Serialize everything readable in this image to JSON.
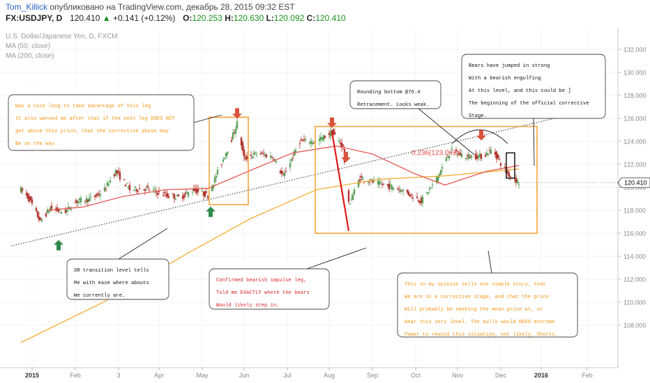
{
  "header": {
    "username": "Tom_Killick",
    "published_text": "опубликовано на TradingView.com, декабрь 28, 2015 09:32 EST",
    "symbol": "FX:USDJPY, D",
    "last": "120.410",
    "up_arrow": "▲",
    "change": "+0.141 (+0.12%)",
    "o_label": "O:",
    "o_value": "120.253",
    "h_label": "H:",
    "h_value": "120.630",
    "l_label": "L:",
    "l_value": "120.092",
    "c_label": "C:",
    "c_value": "120.410"
  },
  "legend": {
    "title": "U.S. Dollar/Japanese Yen, D, FXCM",
    "ma50": "MA (50, close)",
    "ma200": "MA (200, close)"
  },
  "chart_data": {
    "type": "candlestick",
    "instrument": "U.S. Dollar/Japanese Yen, D, FXCM",
    "ylim": [
      107,
      133
    ],
    "y_ticks": [
      "108.000",
      "110.000",
      "112.000",
      "114.000",
      "116.000",
      "118.000",
      "120.000",
      "122.000",
      "124.000",
      "126.000",
      "128.000",
      "130.000",
      "132.000"
    ],
    "x_ticks": [
      "2015",
      "Feb",
      "3",
      "Apr",
      "May",
      "Jun",
      "Jul",
      "Aug",
      "Sep",
      "Oct",
      "Nov",
      "Dec",
      "2016",
      "Feb"
    ],
    "last_price_label": "120.410",
    "fib_label": "0.236(123.062)",
    "price_path": [
      {
        "d": "2015-01-01",
        "p": 119.8
      },
      {
        "d": "2015-01-07",
        "p": 119.0
      },
      {
        "d": "2015-01-15",
        "p": 117.0
      },
      {
        "d": "2015-01-22",
        "p": 118.2
      },
      {
        "d": "2015-02-01",
        "p": 117.8
      },
      {
        "d": "2015-02-10",
        "p": 118.8
      },
      {
        "d": "2015-02-20",
        "p": 119.0
      },
      {
        "d": "2015-03-01",
        "p": 119.6
      },
      {
        "d": "2015-03-10",
        "p": 121.4
      },
      {
        "d": "2015-03-20",
        "p": 119.8
      },
      {
        "d": "2015-04-01",
        "p": 119.9
      },
      {
        "d": "2015-04-15",
        "p": 119.3
      },
      {
        "d": "2015-04-25",
        "p": 119.1
      },
      {
        "d": "2015-05-05",
        "p": 119.8
      },
      {
        "d": "2015-05-15",
        "p": 119.3
      },
      {
        "d": "2015-05-22",
        "p": 121.3
      },
      {
        "d": "2015-06-01",
        "p": 124.2
      },
      {
        "d": "2015-06-05",
        "p": 125.6
      },
      {
        "d": "2015-06-10",
        "p": 122.5
      },
      {
        "d": "2015-06-20",
        "p": 123.0
      },
      {
        "d": "2015-07-01",
        "p": 122.6
      },
      {
        "d": "2015-07-08",
        "p": 120.9
      },
      {
        "d": "2015-07-20",
        "p": 124.0
      },
      {
        "d": "2015-08-01",
        "p": 124.0
      },
      {
        "d": "2015-08-12",
        "p": 124.8
      },
      {
        "d": "2015-08-20",
        "p": 123.5
      },
      {
        "d": "2015-08-24",
        "p": 118.5
      },
      {
        "d": "2015-09-01",
        "p": 120.8
      },
      {
        "d": "2015-09-15",
        "p": 120.3
      },
      {
        "d": "2015-10-01",
        "p": 119.8
      },
      {
        "d": "2015-10-15",
        "p": 118.8
      },
      {
        "d": "2015-10-25",
        "p": 120.5
      },
      {
        "d": "2015-11-05",
        "p": 123.2
      },
      {
        "d": "2015-11-15",
        "p": 122.7
      },
      {
        "d": "2015-11-28",
        "p": 122.7
      },
      {
        "d": "2015-12-05",
        "p": 123.3
      },
      {
        "d": "2015-12-15",
        "p": 121.3
      },
      {
        "d": "2015-12-24",
        "p": 120.41
      }
    ],
    "ma50": [
      {
        "d": "2015-01-20",
        "p": 118.0
      },
      {
        "d": "2015-02-15",
        "p": 118.3
      },
      {
        "d": "2015-03-15",
        "p": 119.2
      },
      {
        "d": "2015-04-15",
        "p": 119.8
      },
      {
        "d": "2015-05-15",
        "p": 119.9
      },
      {
        "d": "2015-06-15",
        "p": 121.5
      },
      {
        "d": "2015-07-15",
        "p": 123.0
      },
      {
        "d": "2015-08-15",
        "p": 123.6
      },
      {
        "d": "2015-09-10",
        "p": 122.9
      },
      {
        "d": "2015-10-10",
        "p": 121.2
      },
      {
        "d": "2015-11-01",
        "p": 120.2
      },
      {
        "d": "2015-12-01",
        "p": 121.4
      },
      {
        "d": "2015-12-24",
        "p": 121.9
      }
    ],
    "ma200": [
      {
        "d": "2015-01-01",
        "p": 106.5
      },
      {
        "d": "2015-03-01",
        "p": 110.0
      },
      {
        "d": "2015-05-01",
        "p": 114.3
      },
      {
        "d": "2015-06-15",
        "p": 117.3
      },
      {
        "d": "2015-08-01",
        "p": 119.8
      },
      {
        "d": "2015-09-15",
        "p": 120.7
      },
      {
        "d": "2015-11-01",
        "p": 121.0
      },
      {
        "d": "2015-12-24",
        "p": 121.6
      }
    ],
    "trendline_sr": [
      {
        "d": "2014-12-25",
        "p": 114.9
      },
      {
        "d": "2016-02-05",
        "p": 126.5
      }
    ],
    "impulse_leg": [
      {
        "d": "2015-08-12",
        "p": 124.8
      },
      {
        "d": "2015-08-24",
        "p": 116.2
      }
    ],
    "boxes": [
      {
        "d1": "2015-05-16",
        "d2": "2015-06-13",
        "p1": 118.5,
        "p2": 126.1,
        "color": "#f5a23a"
      },
      {
        "d1": "2015-07-31",
        "d2": "2016-01-06",
        "p1": 116.0,
        "p2": 125.3,
        "color": "#f5a23a"
      },
      {
        "d1": "2015-12-15",
        "d2": "2015-12-21",
        "p1": 120.8,
        "p2": 123.0,
        "color": "#111111"
      }
    ],
    "arrows": [
      {
        "d": "2015-01-28",
        "p": 115.0,
        "dir": "up"
      },
      {
        "d": "2015-05-17",
        "p": 117.9,
        "dir": "up"
      },
      {
        "d": "2015-06-05",
        "p": 126.4,
        "dir": "down"
      },
      {
        "d": "2015-08-12",
        "p": 125.6,
        "dir": "down"
      },
      {
        "d": "2015-08-22",
        "p": 122.6,
        "dir": "down"
      },
      {
        "d": "2015-11-27",
        "p": 124.5,
        "dir": "down"
      }
    ]
  },
  "annotations": {
    "orange_left": [
      "Was a nice long to take advantage of this leg",
      "It also warned me after that if the next leg DOES NOT",
      "get above this price, that the corrective phase may",
      "Be on the way."
    ],
    "sr_note": [
      "SR transition level tells",
      "Me with ease where abouts",
      "We currently are."
    ],
    "impulse_note": [
      "Confirmed bearish impulse leg,",
      "Told me EXACTLY where the bears",
      "Would likely step in."
    ],
    "rounding_note": [
      "Rounding bottom @76.4",
      "Retracement. Looks weak."
    ],
    "bears_note": [
      "Bears have jumped in strong",
      "With a bearish engulfing",
      "At this level, and this could be ]",
      "The beginning of the official corrective",
      "Stage."
    ],
    "story_note": [
      "This in my opinion tells one simple story, that",
      "We are in a corrective stage, and that the price",
      "Will probably be seeking the mean price at, or",
      "Near this very level. The bulls would NEED extreme",
      "Power to rewind this situation, not likely. Shorts."
    ]
  },
  "colors": {
    "candle_up": "#5aa05a",
    "candle_down": "#b1322d",
    "ma50": "#e24b47",
    "ma200": "#f5a623",
    "box": "#f5a23a",
    "impulse": "#e01818",
    "arrow_up": "#2f8a4c",
    "arrow_down": "#d9533c",
    "orange_text": "#f59412",
    "red_text": "#d9222a",
    "last_bg": "#ffffff"
  }
}
